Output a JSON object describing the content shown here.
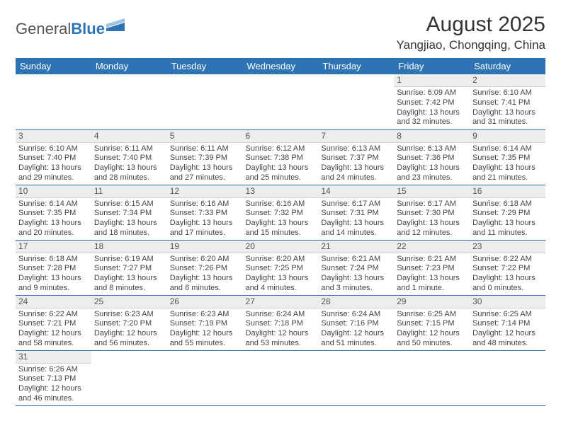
{
  "logo": {
    "part1": "General",
    "part2": "Blue"
  },
  "header": {
    "month_title": "August 2025",
    "location": "Yangjiao, Chongqing, China"
  },
  "colors": {
    "accent": "#2e74b5",
    "header_text": "#ffffff",
    "daynum_bg": "#ededed"
  },
  "day_labels": [
    "Sunday",
    "Monday",
    "Tuesday",
    "Wednesday",
    "Thursday",
    "Friday",
    "Saturday"
  ],
  "weeks": [
    [
      {
        "num": "",
        "sunrise": "",
        "sunset": "",
        "daylight": ""
      },
      {
        "num": "",
        "sunrise": "",
        "sunset": "",
        "daylight": ""
      },
      {
        "num": "",
        "sunrise": "",
        "sunset": "",
        "daylight": ""
      },
      {
        "num": "",
        "sunrise": "",
        "sunset": "",
        "daylight": ""
      },
      {
        "num": "",
        "sunrise": "",
        "sunset": "",
        "daylight": ""
      },
      {
        "num": "1",
        "sunrise": "Sunrise: 6:09 AM",
        "sunset": "Sunset: 7:42 PM",
        "daylight": "Daylight: 13 hours and 32 minutes."
      },
      {
        "num": "2",
        "sunrise": "Sunrise: 6:10 AM",
        "sunset": "Sunset: 7:41 PM",
        "daylight": "Daylight: 13 hours and 31 minutes."
      }
    ],
    [
      {
        "num": "3",
        "sunrise": "Sunrise: 6:10 AM",
        "sunset": "Sunset: 7:40 PM",
        "daylight": "Daylight: 13 hours and 29 minutes."
      },
      {
        "num": "4",
        "sunrise": "Sunrise: 6:11 AM",
        "sunset": "Sunset: 7:40 PM",
        "daylight": "Daylight: 13 hours and 28 minutes."
      },
      {
        "num": "5",
        "sunrise": "Sunrise: 6:11 AM",
        "sunset": "Sunset: 7:39 PM",
        "daylight": "Daylight: 13 hours and 27 minutes."
      },
      {
        "num": "6",
        "sunrise": "Sunrise: 6:12 AM",
        "sunset": "Sunset: 7:38 PM",
        "daylight": "Daylight: 13 hours and 25 minutes."
      },
      {
        "num": "7",
        "sunrise": "Sunrise: 6:13 AM",
        "sunset": "Sunset: 7:37 PM",
        "daylight": "Daylight: 13 hours and 24 minutes."
      },
      {
        "num": "8",
        "sunrise": "Sunrise: 6:13 AM",
        "sunset": "Sunset: 7:36 PM",
        "daylight": "Daylight: 13 hours and 23 minutes."
      },
      {
        "num": "9",
        "sunrise": "Sunrise: 6:14 AM",
        "sunset": "Sunset: 7:35 PM",
        "daylight": "Daylight: 13 hours and 21 minutes."
      }
    ],
    [
      {
        "num": "10",
        "sunrise": "Sunrise: 6:14 AM",
        "sunset": "Sunset: 7:35 PM",
        "daylight": "Daylight: 13 hours and 20 minutes."
      },
      {
        "num": "11",
        "sunrise": "Sunrise: 6:15 AM",
        "sunset": "Sunset: 7:34 PM",
        "daylight": "Daylight: 13 hours and 18 minutes."
      },
      {
        "num": "12",
        "sunrise": "Sunrise: 6:16 AM",
        "sunset": "Sunset: 7:33 PM",
        "daylight": "Daylight: 13 hours and 17 minutes."
      },
      {
        "num": "13",
        "sunrise": "Sunrise: 6:16 AM",
        "sunset": "Sunset: 7:32 PM",
        "daylight": "Daylight: 13 hours and 15 minutes."
      },
      {
        "num": "14",
        "sunrise": "Sunrise: 6:17 AM",
        "sunset": "Sunset: 7:31 PM",
        "daylight": "Daylight: 13 hours and 14 minutes."
      },
      {
        "num": "15",
        "sunrise": "Sunrise: 6:17 AM",
        "sunset": "Sunset: 7:30 PM",
        "daylight": "Daylight: 13 hours and 12 minutes."
      },
      {
        "num": "16",
        "sunrise": "Sunrise: 6:18 AM",
        "sunset": "Sunset: 7:29 PM",
        "daylight": "Daylight: 13 hours and 11 minutes."
      }
    ],
    [
      {
        "num": "17",
        "sunrise": "Sunrise: 6:18 AM",
        "sunset": "Sunset: 7:28 PM",
        "daylight": "Daylight: 13 hours and 9 minutes."
      },
      {
        "num": "18",
        "sunrise": "Sunrise: 6:19 AM",
        "sunset": "Sunset: 7:27 PM",
        "daylight": "Daylight: 13 hours and 8 minutes."
      },
      {
        "num": "19",
        "sunrise": "Sunrise: 6:20 AM",
        "sunset": "Sunset: 7:26 PM",
        "daylight": "Daylight: 13 hours and 6 minutes."
      },
      {
        "num": "20",
        "sunrise": "Sunrise: 6:20 AM",
        "sunset": "Sunset: 7:25 PM",
        "daylight": "Daylight: 13 hours and 4 minutes."
      },
      {
        "num": "21",
        "sunrise": "Sunrise: 6:21 AM",
        "sunset": "Sunset: 7:24 PM",
        "daylight": "Daylight: 13 hours and 3 minutes."
      },
      {
        "num": "22",
        "sunrise": "Sunrise: 6:21 AM",
        "sunset": "Sunset: 7:23 PM",
        "daylight": "Daylight: 13 hours and 1 minute."
      },
      {
        "num": "23",
        "sunrise": "Sunrise: 6:22 AM",
        "sunset": "Sunset: 7:22 PM",
        "daylight": "Daylight: 13 hours and 0 minutes."
      }
    ],
    [
      {
        "num": "24",
        "sunrise": "Sunrise: 6:22 AM",
        "sunset": "Sunset: 7:21 PM",
        "daylight": "Daylight: 12 hours and 58 minutes."
      },
      {
        "num": "25",
        "sunrise": "Sunrise: 6:23 AM",
        "sunset": "Sunset: 7:20 PM",
        "daylight": "Daylight: 12 hours and 56 minutes."
      },
      {
        "num": "26",
        "sunrise": "Sunrise: 6:23 AM",
        "sunset": "Sunset: 7:19 PM",
        "daylight": "Daylight: 12 hours and 55 minutes."
      },
      {
        "num": "27",
        "sunrise": "Sunrise: 6:24 AM",
        "sunset": "Sunset: 7:18 PM",
        "daylight": "Daylight: 12 hours and 53 minutes."
      },
      {
        "num": "28",
        "sunrise": "Sunrise: 6:24 AM",
        "sunset": "Sunset: 7:16 PM",
        "daylight": "Daylight: 12 hours and 51 minutes."
      },
      {
        "num": "29",
        "sunrise": "Sunrise: 6:25 AM",
        "sunset": "Sunset: 7:15 PM",
        "daylight": "Daylight: 12 hours and 50 minutes."
      },
      {
        "num": "30",
        "sunrise": "Sunrise: 6:25 AM",
        "sunset": "Sunset: 7:14 PM",
        "daylight": "Daylight: 12 hours and 48 minutes."
      }
    ],
    [
      {
        "num": "31",
        "sunrise": "Sunrise: 6:26 AM",
        "sunset": "Sunset: 7:13 PM",
        "daylight": "Daylight: 12 hours and 46 minutes."
      },
      {
        "num": "",
        "sunrise": "",
        "sunset": "",
        "daylight": ""
      },
      {
        "num": "",
        "sunrise": "",
        "sunset": "",
        "daylight": ""
      },
      {
        "num": "",
        "sunrise": "",
        "sunset": "",
        "daylight": ""
      },
      {
        "num": "",
        "sunrise": "",
        "sunset": "",
        "daylight": ""
      },
      {
        "num": "",
        "sunrise": "",
        "sunset": "",
        "daylight": ""
      },
      {
        "num": "",
        "sunrise": "",
        "sunset": "",
        "daylight": ""
      }
    ]
  ]
}
